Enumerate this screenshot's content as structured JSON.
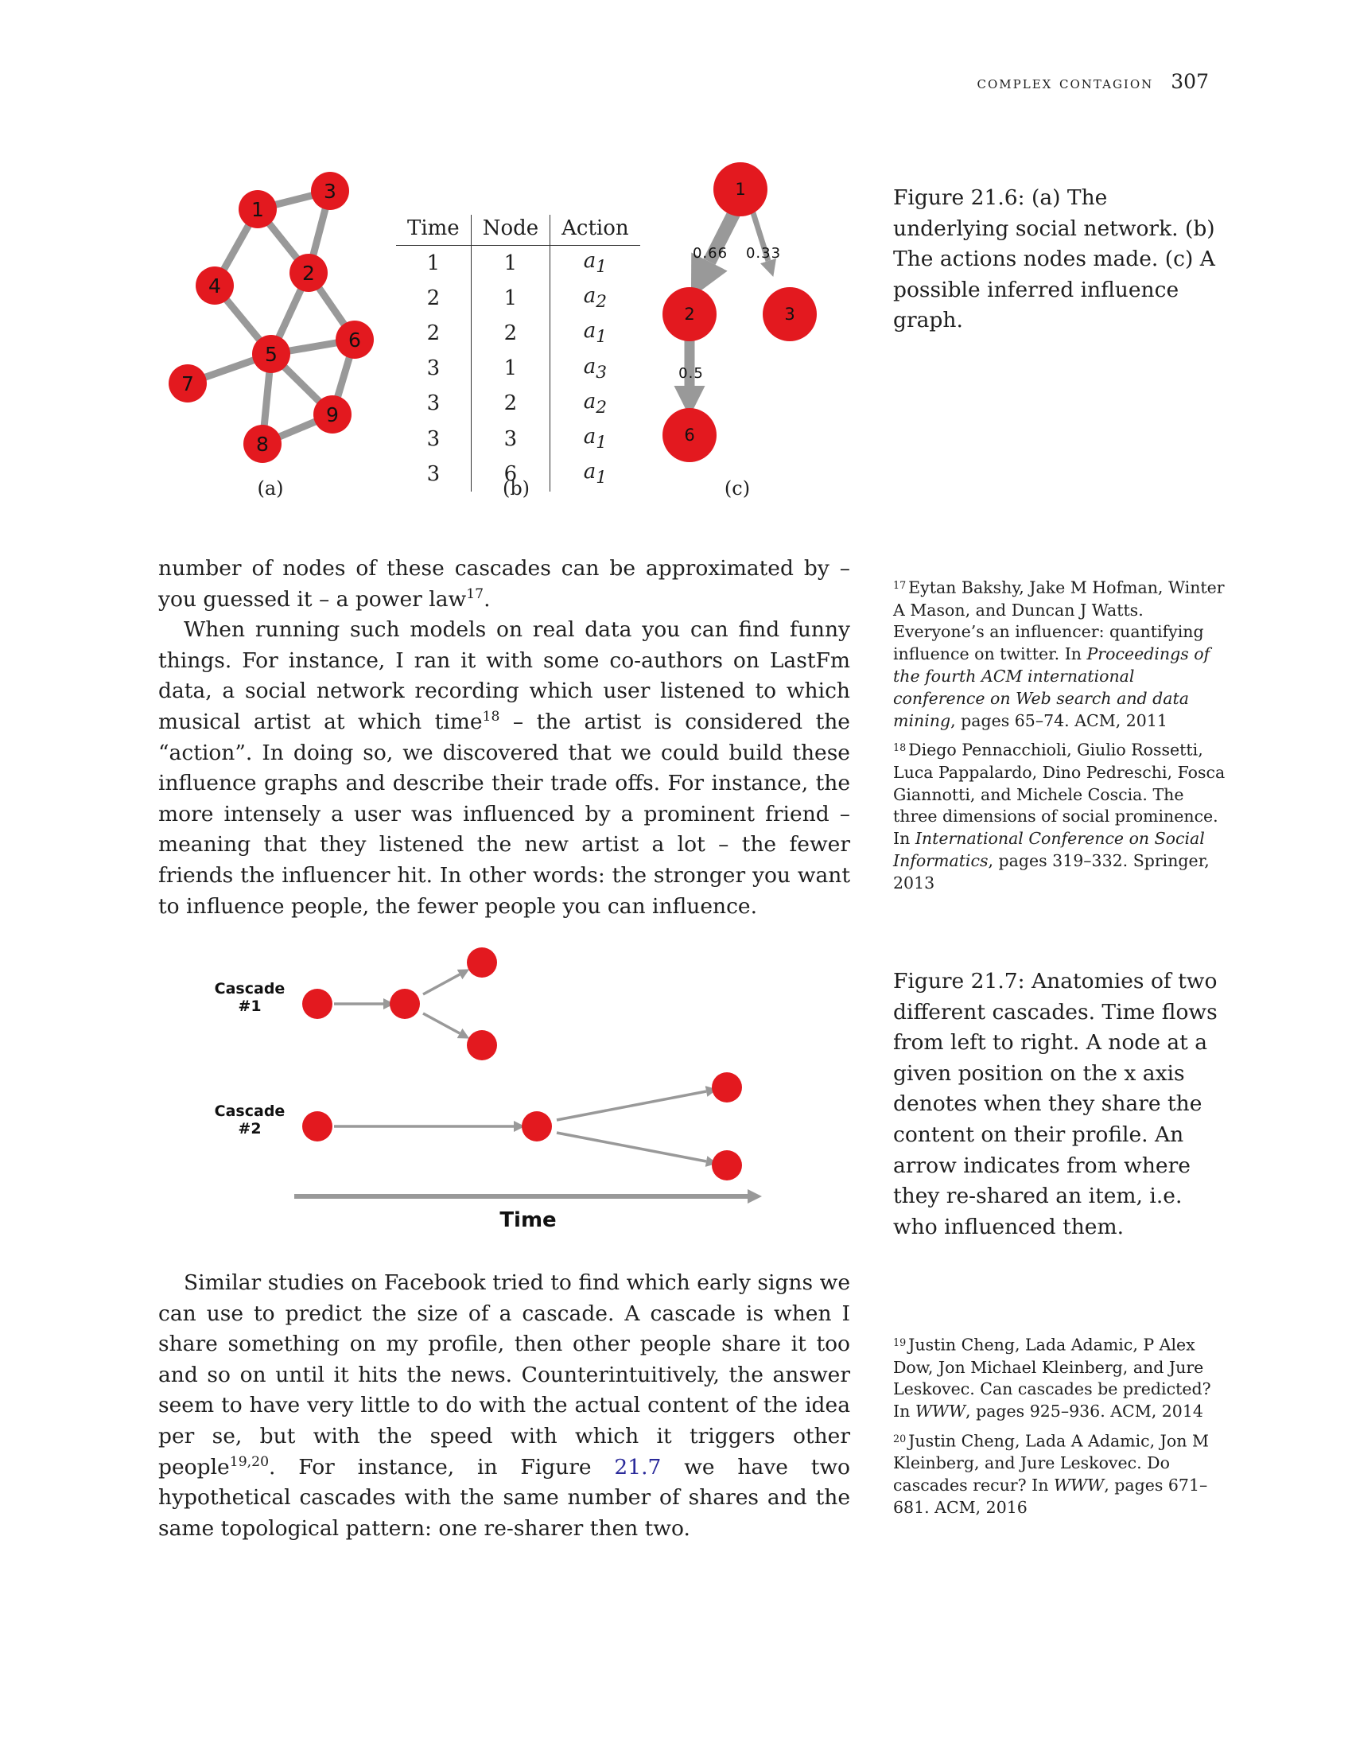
{
  "header": {
    "title": "complex contagion",
    "page_number": "307"
  },
  "figure_21_6": {
    "network": {
      "nodes": [
        "1",
        "2",
        "3",
        "4",
        "5",
        "6",
        "7",
        "8",
        "9"
      ]
    },
    "table": {
      "headers": [
        "Time",
        "Node",
        "Action"
      ],
      "rows": [
        {
          "time": "1",
          "node": "1",
          "action": "a",
          "sub": "1"
        },
        {
          "time": "2",
          "node": "1",
          "action": "a",
          "sub": "2"
        },
        {
          "time": "2",
          "node": "2",
          "action": "a",
          "sub": "1"
        },
        {
          "time": "3",
          "node": "1",
          "action": "a",
          "sub": "3"
        },
        {
          "time": "3",
          "node": "2",
          "action": "a",
          "sub": "2"
        },
        {
          "time": "3",
          "node": "3",
          "action": "a",
          "sub": "1"
        },
        {
          "time": "3",
          "node": "6",
          "action": "a",
          "sub": "1"
        }
      ]
    },
    "influence": {
      "nodes": [
        "1",
        "2",
        "3",
        "6"
      ],
      "edge_labels": [
        "0.66",
        "0.33",
        "0.5"
      ]
    },
    "sublabels": [
      "(a)",
      "(b)",
      "(c)"
    ],
    "caption": "Figure 21.6: (a) The underlying social network. (b) The actions nodes made. (c) A possible inferred influence graph."
  },
  "paragraph1": {
    "text": "number of nodes of these cascades can be approximated by – you guessed it – a power law",
    "ref": "17",
    "end": "."
  },
  "paragraph2": {
    "text_a": "When running such models on real data you can find funny things. For instance, I ran it with some co-authors on LastFm data, a social network recording which user listened to which musical artist at which time",
    "ref": "18",
    "text_b": " – the artist is considered the “action”. In doing so, we discovered that we could build these influence graphs and describe their trade offs. For instance, the more intensely a user was influenced by a prominent friend – meaning that they listened the new artist a lot – the fewer friends the influencer hit. In other words: the stronger you want to influence people, the fewer people you can influence."
  },
  "sidenotes_1": [
    {
      "num": "17",
      "a": "Eytan Bakshy, Jake M Hofman, Winter A Mason, and Duncan J Watts. Everyone’s an influencer: quantifying influence on twitter. In ",
      "i": "Proceedings of the fourth ACM international conference on Web search and data mining",
      "b": ", pages 65–74. ACM, 2011"
    },
    {
      "num": "18",
      "a": "Diego Pennacchioli, Giulio Rossetti, Luca Pappalardo, Dino Pedreschi, Fosca Giannotti, and Michele Coscia. The three dimensions of social prominence. In ",
      "i": "International Conference on Social Informatics",
      "b": ", pages 319–332. Springer, 2013"
    }
  ],
  "figure_21_7": {
    "cascade1_label_line1": "Cascade",
    "cascade1_label_line2": "#1",
    "cascade2_label_line1": "Cascade",
    "cascade2_label_line2": "#2",
    "axis_label": "Time",
    "caption": "Figure 21.7: Anatomies of two different cascades. Time flows from left to right. A node at a given position on the x axis denotes when they share the content on their profile. An arrow indicates from where they re-shared an item, i.e. who influenced them."
  },
  "paragraph3": {
    "text_a": "Similar studies on Facebook tried to find which early signs we can use to predict the size of a cascade. A cascade is when I share something on my profile, then other people share it too and so on until it hits the news. Counterintuitively, the answer seem to have very little to do with the actual content of the idea per se, but with the speed with which it triggers other people",
    "ref": "19,20",
    "text_b": ". For instance, in Figure ",
    "link": "21.7",
    "text_c": " we have two hypothetical cascades with the same number of shares and the same topological pattern: one re-sharer then two."
  },
  "sidenotes_2": [
    {
      "num": "19",
      "a": "Justin Cheng, Lada Adamic, P Alex Dow, Jon Michael Kleinberg, and Jure Leskovec. Can cascades be predicted? In ",
      "i": "WWW",
      "b": ", pages 925–936. ACM, 2014"
    },
    {
      "num": "20",
      "a": "Justin Cheng, Lada A Adamic, Jon M Kleinberg, and Jure Leskovec. Do cascades recur? In ",
      "i": "WWW",
      "b": ", pages 671–681. ACM, 2016"
    }
  ],
  "colors": {
    "node": "#e3191f",
    "edge": "#999999"
  }
}
